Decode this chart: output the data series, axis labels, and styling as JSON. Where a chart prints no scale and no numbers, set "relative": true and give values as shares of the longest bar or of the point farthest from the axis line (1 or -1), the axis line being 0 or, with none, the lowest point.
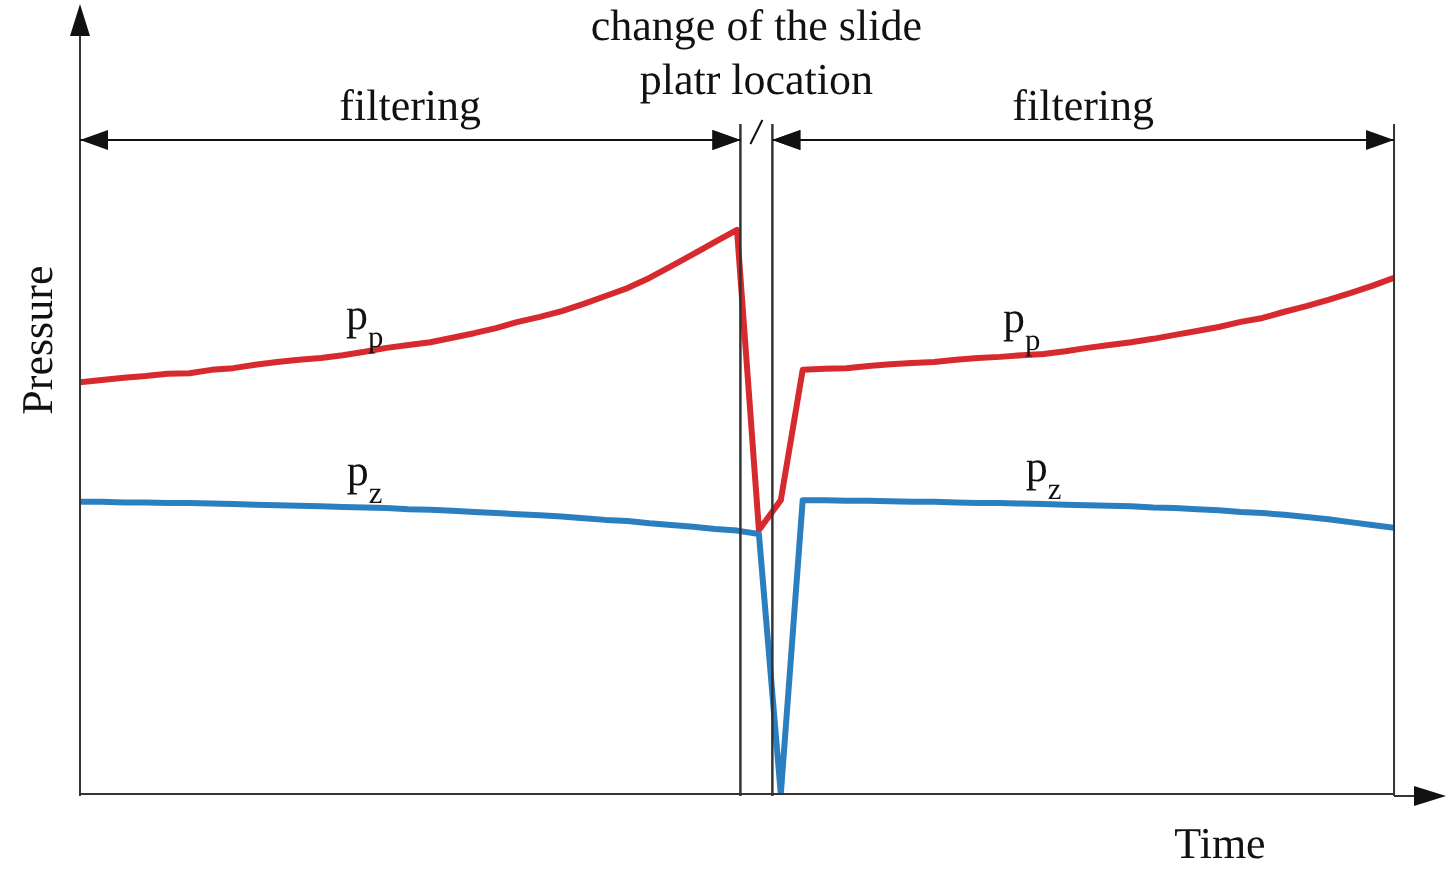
{
  "chart_data": {
    "type": "line",
    "relative": true,
    "xlabel": "Time",
    "ylabel": "Pressure",
    "marker": "none",
    "line_style": "solid",
    "categories": [
      null,
      null,
      null,
      null,
      null,
      null,
      null,
      null,
      null,
      null,
      null,
      null,
      null,
      null,
      null,
      null,
      null,
      null,
      null,
      null,
      null,
      null,
      null,
      null,
      null,
      null,
      null,
      null,
      null,
      null,
      null,
      null,
      null,
      null,
      null,
      null,
      null,
      null,
      null,
      null,
      null,
      null,
      null,
      null,
      null,
      null,
      null,
      null,
      null,
      null,
      null,
      null,
      null,
      null,
      null,
      null,
      null,
      null,
      null,
      null,
      null
    ],
    "series": [
      {
        "name": "p$_{p}$",
        "color": "#d62a2e",
        "values": [
          0.73,
          0.734,
          0.738,
          0.741,
          0.745,
          0.746,
          0.752,
          0.755,
          0.761,
          0.766,
          0.77,
          0.773,
          0.778,
          0.784,
          0.791,
          0.796,
          0.801,
          0.809,
          0.817,
          0.826,
          0.837,
          0.846,
          0.856,
          0.869,
          0.883,
          0.897,
          0.915,
          0.936,
          0.957,
          0.979,
          1,
          0.468,
          0.521,
          0.752,
          0.754,
          0.755,
          0.759,
          0.762,
          0.764,
          0.766,
          0.77,
          0.773,
          0.775,
          0.778,
          0.78,
          0.785,
          0.791,
          0.796,
          0.801,
          0.807,
          0.814,
          0.821,
          0.828,
          0.837,
          0.844,
          0.855,
          0.865,
          0.876,
          0.888,
          0.901,
          0.915
        ]
      },
      {
        "name": "p$_{z}$",
        "color": "#2a7fc1",
        "values": [
          0.518,
          0.518,
          0.517,
          0.517,
          0.516,
          0.516,
          0.515,
          0.514,
          0.513,
          0.512,
          0.511,
          0.51,
          0.509,
          0.508,
          0.507,
          0.505,
          0.504,
          0.502,
          0.5,
          0.498,
          0.496,
          0.494,
          0.492,
          0.489,
          0.486,
          0.484,
          0.48,
          0.477,
          0.474,
          0.47,
          0.467,
          0.461,
          0,
          0.521,
          0.521,
          0.52,
          0.52,
          0.519,
          0.518,
          0.518,
          0.517,
          0.516,
          0.516,
          0.515,
          0.514,
          0.513,
          0.512,
          0.511,
          0.51,
          0.508,
          0.507,
          0.505,
          0.503,
          0.5,
          0.498,
          0.495,
          0.491,
          0.487,
          0.482,
          0.477,
          0.472
        ]
      }
    ],
    "annotations": [
      "filtering",
      "change of the slide platr location",
      "filtering"
    ]
  }
}
